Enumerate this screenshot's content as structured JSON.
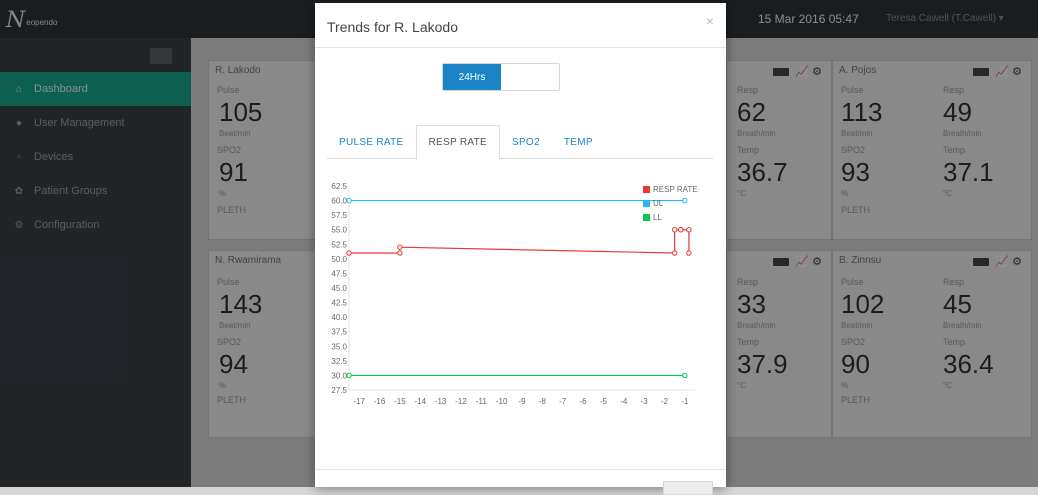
{
  "app": {
    "logo_text": "N",
    "logo_subtext": "eopendo",
    "datetime": "15 Mar 2016 05:47",
    "user": "Teresa Cawell (T.Cawell) ▾"
  },
  "sidebar": {
    "items": [
      {
        "label": "Dashboard",
        "icon": "home-icon",
        "glyph": "⌂",
        "active": true
      },
      {
        "label": "User Management",
        "icon": "user-icon",
        "glyph": "●",
        "active": false
      },
      {
        "label": "Devices",
        "icon": "device-icon",
        "glyph": "▫",
        "active": false
      },
      {
        "label": "Patient Groups",
        "icon": "group-icon",
        "glyph": "✿",
        "active": false
      },
      {
        "label": "Configuration",
        "icon": "gear-icon",
        "glyph": "⚙",
        "active": false
      }
    ]
  },
  "cards": {
    "c1": {
      "name": "R. Lakodo",
      "l1": "Pulse",
      "v1": "105",
      "u1": "Beat/min",
      "l2": "SPO2",
      "v2": "91",
      "u2": "%",
      "l3": "PLETH"
    },
    "c2": {
      "name": "N. Rwamirama",
      "l1": "Pulse",
      "v1": "143",
      "u1": "Beat/min",
      "l2": "SPO2",
      "v2": "94",
      "u2": "%",
      "l3": "PLETH"
    },
    "c3": {
      "l1": "Resp",
      "v1": "62",
      "u1": "Breath/min",
      "l2": "Temp",
      "v2": "36.7",
      "u2": "°C"
    },
    "c4": {
      "name": "A. Pojos",
      "l1": "Pulse",
      "v1": "113",
      "u1": "Beat/min",
      "l2": "SPO2",
      "v2": "93",
      "u2": "%",
      "l3": "PLETH",
      "r1": "Resp",
      "rv1": "49",
      "ru1": "Breath/min",
      "r2": "Temp",
      "rv2": "37.1",
      "ru2": "°C"
    },
    "c5": {
      "l1": "Resp",
      "v1": "33",
      "u1": "Breath/min",
      "l2": "Temp",
      "v2": "37.9",
      "u2": "°C"
    },
    "c6": {
      "name": "B. Zinnsu",
      "l1": "Pulse",
      "v1": "102",
      "u1": "Beat/min",
      "l2": "SPO2",
      "v2": "90",
      "u2": "%",
      "l3": "PLETH",
      "r1": "Resp",
      "rv1": "45",
      "ru1": "Breath/min",
      "r2": "Temp",
      "rv2": "36.4",
      "ru2": "°C"
    }
  },
  "modal": {
    "title": "Trends for R. Lakodo",
    "close": "×",
    "range_button": "24Hrs",
    "tabs": [
      "PULSE RATE",
      "RESP RATE",
      "SPO2",
      "TEMP"
    ],
    "active_tab": 1
  },
  "chart_data": {
    "type": "line",
    "ylim": [
      27.5,
      62.5
    ],
    "yticks": [
      62.5,
      60.0,
      57.5,
      55.0,
      52.5,
      50.0,
      47.5,
      45.0,
      42.5,
      40.0,
      37.5,
      35.0,
      32.5,
      30.0,
      27.5
    ],
    "xlim": [
      -17.5,
      -0.5
    ],
    "xticks": [
      -17,
      -16,
      -15,
      -14,
      -13,
      -12,
      -11,
      -10,
      -9,
      -8,
      -7,
      -6,
      -5,
      -4,
      -3,
      -2,
      -1
    ],
    "legend_position": "top-right",
    "series": [
      {
        "name": "RESP RATE",
        "color": "#e53935",
        "x": [
          -17.5,
          -15,
          -15,
          -1.5,
          -1.5,
          -1.2,
          -1.2,
          -0.8,
          -0.8
        ],
        "y": [
          51,
          51,
          52,
          51,
          55,
          55,
          55,
          55,
          51
        ]
      },
      {
        "name": "UL",
        "color": "#29b6f6",
        "x": [
          -17.5,
          -1
        ],
        "y": [
          60,
          60
        ]
      },
      {
        "name": "LL",
        "color": "#00c853",
        "x": [
          -17.5,
          -1
        ],
        "y": [
          30,
          30
        ]
      }
    ]
  }
}
